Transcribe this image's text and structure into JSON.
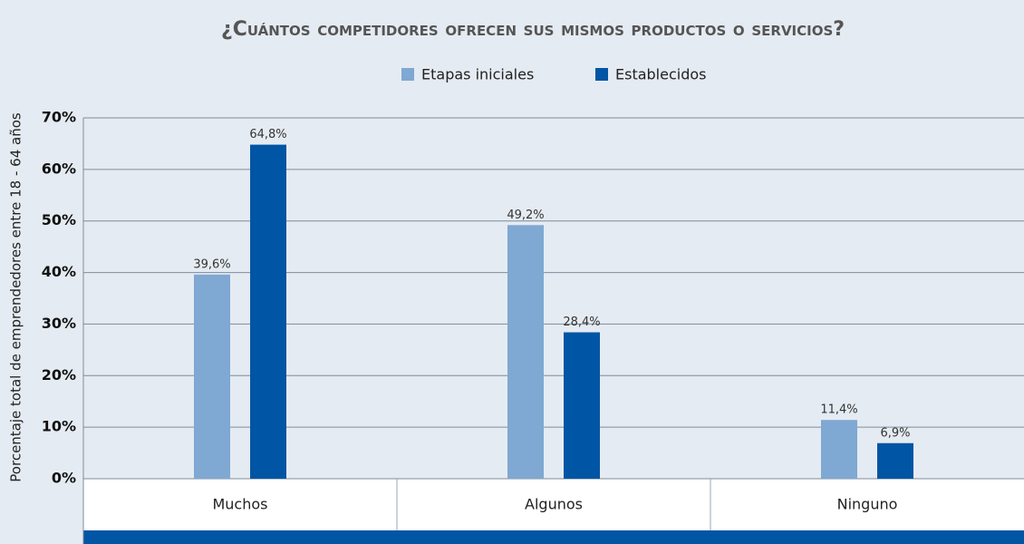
{
  "chart_data": {
    "type": "bar",
    "title": "¿Cuántos competidores ofrecen sus mismos productos o servicios?",
    "ylabel": "Porcentaje total de emprendedores entre 18 - 64 años",
    "categories": [
      "Muchos",
      "Algunos",
      "Ninguno"
    ],
    "series": [
      {
        "name": "Etapas iniciales",
        "color": "#7fa8d2",
        "values": [
          39.6,
          49.2,
          11.4
        ],
        "value_labels": [
          "39,6%",
          "49,2%",
          "11,4%"
        ]
      },
      {
        "name": "Establecidos",
        "color": "#0055a4",
        "values": [
          64.8,
          28.4,
          6.9
        ],
        "value_labels": [
          "64,8%",
          "28,4%",
          "6,9%"
        ]
      }
    ],
    "ylim": [
      0,
      70
    ],
    "yticks": [
      {
        "value": 0,
        "label": "0%"
      },
      {
        "value": 10,
        "label": "10%"
      },
      {
        "value": 20,
        "label": "20%"
      },
      {
        "value": 30,
        "label": "30%"
      },
      {
        "value": 40,
        "label": "40%"
      },
      {
        "value": 50,
        "label": "50%"
      },
      {
        "value": 60,
        "label": "60%"
      },
      {
        "value": 70,
        "label": "70%"
      }
    ],
    "grid": true,
    "legend": "top"
  }
}
